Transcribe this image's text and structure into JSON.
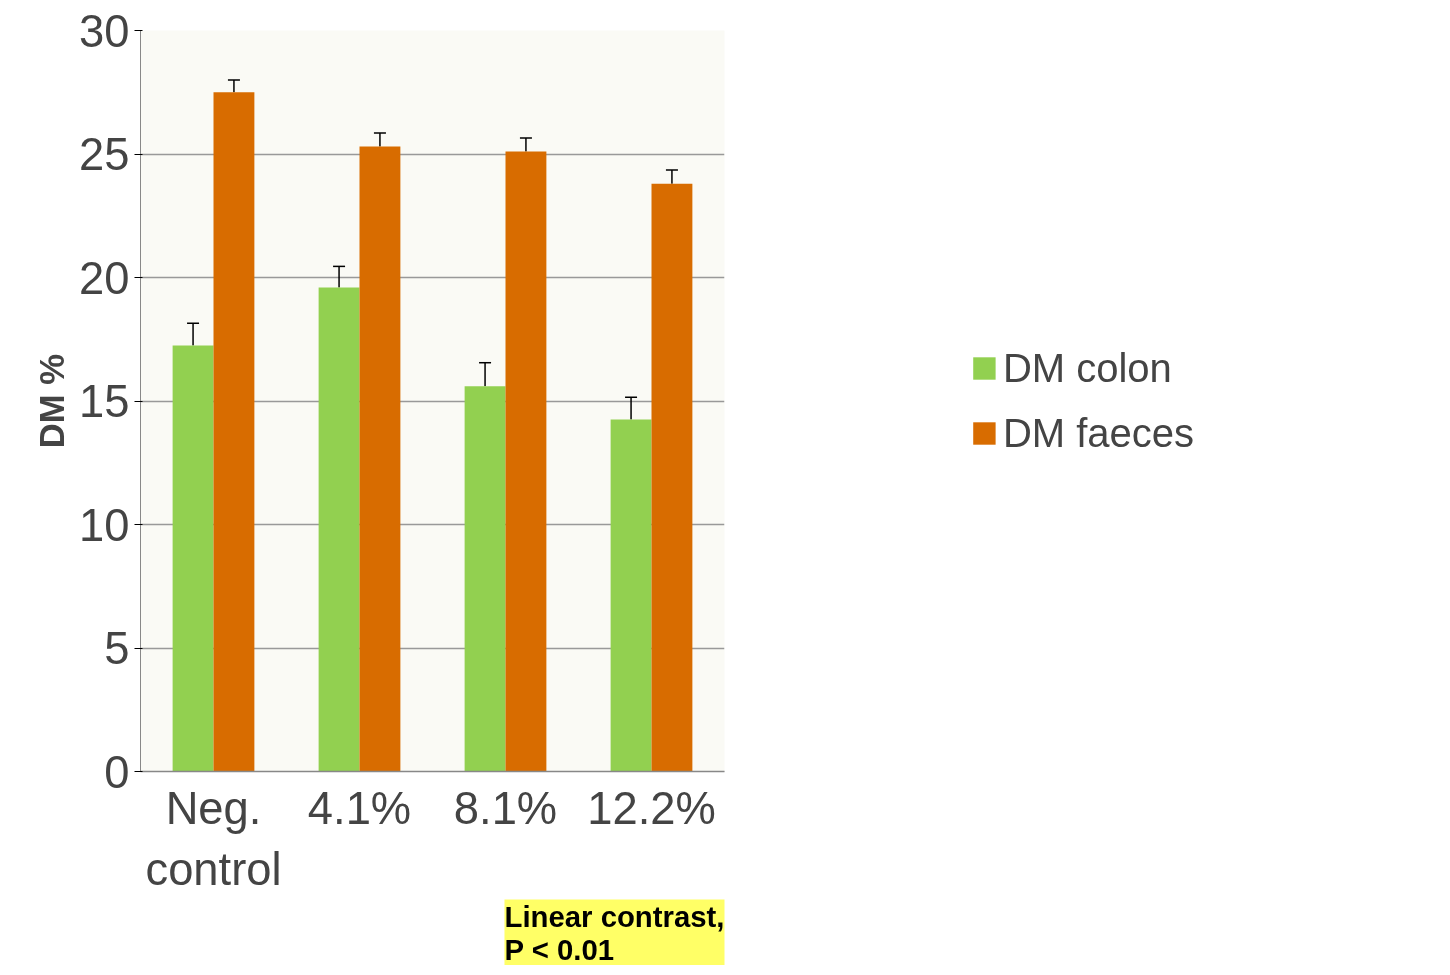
{
  "chart_data": {
    "type": "bar",
    "ylabel": "DM %",
    "categories": [
      "Neg.\ncontrol",
      "4.1%",
      "8.1%",
      "12.2%"
    ],
    "series": [
      {
        "name": "DM colon",
        "color": "#92d050",
        "values": [
          17.25,
          19.6,
          15.6,
          14.25
        ],
        "errors": [
          [
            17.25,
            18.15
          ],
          [
            19.6,
            20.45
          ],
          [
            15.6,
            16.55
          ],
          [
            14.25,
            15.15
          ]
        ]
      },
      {
        "name": "DM faeces",
        "color": "#d86c00",
        "values": [
          27.5,
          25.3,
          25.1,
          23.8
        ],
        "errors": [
          [
            27.5,
            28.0
          ],
          [
            25.3,
            25.85
          ],
          [
            25.1,
            25.65
          ],
          [
            23.8,
            24.35
          ]
        ]
      }
    ],
    "ylim": [
      0,
      30
    ],
    "yticks": [
      0,
      5,
      10,
      15,
      20,
      25,
      30
    ],
    "grid": "y",
    "legend": "right",
    "annotations": [
      "Linear contrast,\nP < 0.01"
    ]
  }
}
